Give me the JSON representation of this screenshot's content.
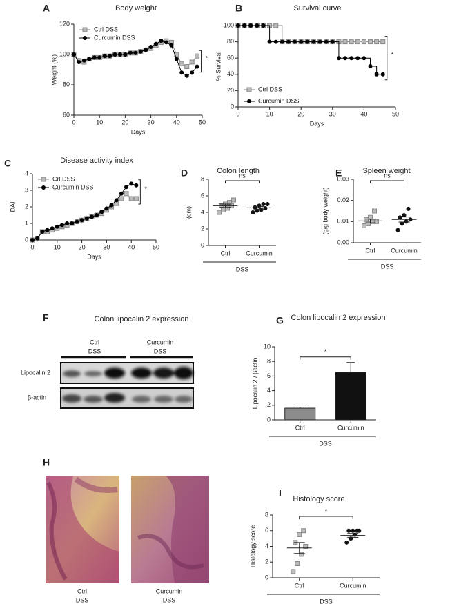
{
  "chart_data": [
    {
      "panel": "A",
      "type": "line",
      "title": "Body weight",
      "xlabel": "Days",
      "ylabel": "Weight (%)",
      "x": [
        0,
        2,
        4,
        6,
        8,
        10,
        12,
        14,
        16,
        18,
        20,
        22,
        24,
        26,
        28,
        30,
        32,
        34,
        36,
        38,
        40,
        42,
        44,
        46,
        48
      ],
      "xlim": [
        0,
        50
      ],
      "xticks": [
        0,
        10,
        20,
        30,
        40,
        50
      ],
      "ylim": [
        60,
        120
      ],
      "yticks": [
        60,
        80,
        100,
        120
      ],
      "legend": "upper left",
      "annotation": "*",
      "step": false,
      "series": [
        {
          "name": "Ctrl DSS",
          "color": "#888888",
          "marker": "square",
          "values": [
            100,
            96,
            95,
            97,
            98,
            98,
            99,
            99,
            100,
            100,
            100,
            101,
            101,
            102,
            103,
            104,
            106,
            108,
            109,
            108,
            100,
            94,
            92,
            95,
            99
          ]
        },
        {
          "name": "Curcumin DSS",
          "color": "#000000",
          "marker": "circle",
          "values": [
            100,
            95,
            96,
            97,
            98,
            98,
            99,
            99,
            100,
            100,
            100,
            101,
            101,
            102,
            103,
            105,
            107,
            109,
            108,
            106,
            97,
            88,
            86,
            88,
            92
          ]
        }
      ]
    },
    {
      "panel": "B",
      "type": "line",
      "title": "Survival curve",
      "xlabel": "Days",
      "ylabel": "% Survival",
      "x": [
        0,
        2,
        4,
        6,
        8,
        10,
        12,
        14,
        16,
        18,
        20,
        22,
        24,
        26,
        28,
        30,
        32,
        34,
        36,
        38,
        40,
        42,
        44,
        46
      ],
      "xlim": [
        0,
        50
      ],
      "xticks": [
        0,
        10,
        20,
        30,
        40,
        50
      ],
      "ylim": [
        0,
        100
      ],
      "yticks": [
        0,
        20,
        40,
        60,
        80,
        100
      ],
      "legend": "lower left",
      "annotation": "*",
      "step": true,
      "series": [
        {
          "name": "Ctrl DSS",
          "color": "#888888",
          "marker": "square",
          "values": [
            100,
            100,
            100,
            100,
            100,
            100,
            100,
            80,
            80,
            80,
            80,
            80,
            80,
            80,
            80,
            80,
            80,
            80,
            80,
            80,
            80,
            80,
            80,
            80
          ]
        },
        {
          "name": "Curcumin DSS",
          "color": "#000000",
          "marker": "circle",
          "values": [
            100,
            100,
            100,
            100,
            100,
            80,
            80,
            80,
            80,
            80,
            80,
            80,
            80,
            80,
            80,
            80,
            60,
            60,
            60,
            60,
            60,
            50,
            40,
            40
          ]
        }
      ]
    },
    {
      "panel": "C",
      "type": "line",
      "title": "Disease activity index",
      "xlabel": "Days",
      "ylabel": "DAI",
      "x": [
        0,
        2,
        4,
        6,
        8,
        10,
        12,
        14,
        16,
        18,
        20,
        22,
        24,
        26,
        28,
        30,
        32,
        34,
        36,
        38,
        40,
        42
      ],
      "xlim": [
        0,
        50
      ],
      "xticks": [
        0,
        10,
        20,
        30,
        40,
        50
      ],
      "ylim": [
        0,
        4
      ],
      "yticks": [
        0,
        1,
        2,
        3,
        4
      ],
      "legend": "upper left",
      "annotation": "*",
      "step": false,
      "series": [
        {
          "name": "Crl DSS",
          "color": "#888888",
          "marker": "square",
          "values": [
            0,
            0.1,
            0.5,
            0.5,
            0.6,
            0.7,
            0.8,
            0.9,
            1.0,
            1.1,
            1.2,
            1.3,
            1.4,
            1.5,
            1.6,
            1.8,
            2.0,
            2.2,
            2.5,
            2.8,
            2.5,
            2.5
          ]
        },
        {
          "name": "Curcumin DSS",
          "color": "#000000",
          "marker": "circle",
          "values": [
            0,
            0.1,
            0.5,
            0.6,
            0.7,
            0.8,
            0.9,
            1.0,
            1.0,
            1.1,
            1.2,
            1.3,
            1.4,
            1.5,
            1.7,
            1.9,
            2.1,
            2.4,
            2.8,
            3.2,
            3.4,
            3.3
          ]
        }
      ]
    },
    {
      "panel": "D",
      "type": "strip",
      "title": "Colon length",
      "ylabel": "(cm)",
      "categories": [
        "Ctrl",
        "Curcumin"
      ],
      "group_label": "DSS",
      "annotation": "ns",
      "ylim": [
        0,
        8
      ],
      "yticks": [
        0,
        2,
        4,
        6,
        8
      ],
      "colors": [
        "#888888",
        "#111111"
      ],
      "markers": [
        "square",
        "circle"
      ],
      "points": [
        [
          4.0,
          4.3,
          4.5,
          4.8,
          4.8,
          5.0,
          5.2,
          5.5
        ],
        [
          4.0,
          4.2,
          4.3,
          4.5,
          4.6,
          4.8,
          5.0,
          5.0
        ]
      ],
      "means": [
        4.8,
        4.55
      ],
      "errors": [
        0.2,
        0.15
      ]
    },
    {
      "panel": "E",
      "type": "strip",
      "title": "Spleen weight",
      "ylabel": "(g/g body weight)",
      "categories": [
        "Ctrl",
        "Curcumin"
      ],
      "group_label": "DSS",
      "annotation": "ns",
      "ylim": [
        0,
        0.03
      ],
      "yticks": [
        {
          "value": 0,
          "label": "0.00"
        },
        0.01,
        0.02,
        0.03
      ],
      "colors": [
        "#888888",
        "#111111"
      ],
      "markers": [
        "square",
        "circle"
      ],
      "points": [
        [
          0.008,
          0.009,
          0.01,
          0.01,
          0.011,
          0.012,
          0.015
        ],
        [
          0.006,
          0.009,
          0.01,
          0.011,
          0.012,
          0.013,
          0.016
        ]
      ],
      "means": [
        0.0103,
        0.011
      ],
      "errors": [
        0.0009,
        0.0012
      ]
    },
    {
      "panel": "G",
      "type": "bar",
      "title": "Colon lipocalin 2 expression",
      "ylabel": "Lipocalin 2 / βactin",
      "categories": [
        "Ctrl",
        "Curcumin"
      ],
      "group_label": "DSS",
      "annotation": "*",
      "ylim": [
        0,
        10
      ],
      "yticks": [
        0,
        2,
        4,
        6,
        8,
        10
      ],
      "colors": [
        "#8c8c8c",
        "#111111"
      ],
      "values": [
        1.6,
        6.5
      ],
      "errors": [
        0.15,
        1.35
      ]
    },
    {
      "panel": "I",
      "type": "strip",
      "title": "Histology score",
      "ylabel": "Histology score",
      "categories": [
        "Ctrl",
        "Curcumin"
      ],
      "group_label": "DSS",
      "annotation": "*",
      "ylim": [
        0,
        8
      ],
      "yticks": [
        0,
        2,
        4,
        6,
        8
      ],
      "colors": [
        "#888888",
        "#111111"
      ],
      "markers": [
        "square",
        "circle"
      ],
      "points": [
        [
          0.8,
          1.8,
          3,
          4,
          4.5,
          5.5,
          6
        ],
        [
          4.5,
          5,
          5.5,
          6,
          6,
          6,
          6
        ]
      ],
      "means": [
        3.8,
        5.4
      ],
      "errors": [
        0.7,
        0.25
      ]
    }
  ],
  "blot": {
    "panel": "F",
    "title": "Colon lipocalin 2 expression",
    "groups": [
      {
        "name": "Ctrl",
        "condition": "DSS"
      },
      {
        "name": "Curcumin",
        "condition": "DSS"
      }
    ],
    "rows": [
      "Lipocalin 2",
      "β-actin"
    ]
  },
  "histology": {
    "panel": "H",
    "images": [
      {
        "name": "Ctrl",
        "condition": "DSS"
      },
      {
        "name": "Curcumin",
        "condition": "DSS"
      }
    ]
  }
}
